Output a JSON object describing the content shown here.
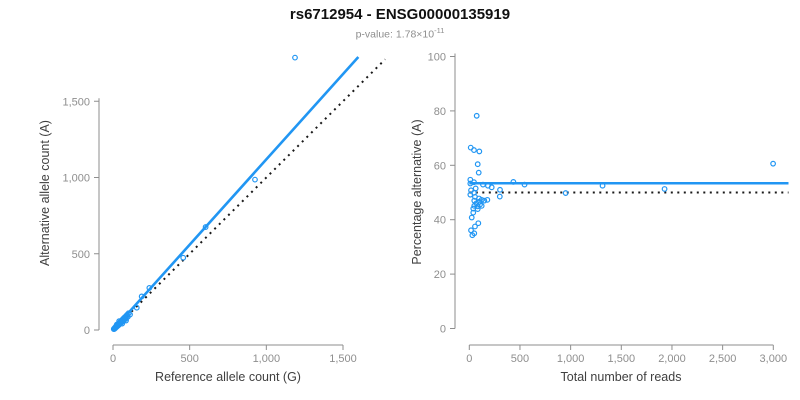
{
  "header": {
    "title": "rs6712954 - ENSG00000135919",
    "p_label": "p-value:",
    "p_mantissa": " 1.78×10",
    "p_exponent": "-11"
  },
  "colors": {
    "accent_blue": "#2196f3",
    "identity_black": "#1a1a1a",
    "axis_gray": "#8e8e8e",
    "tick_label_gray": "#8e8e8e",
    "axis_title_gray": "#404040"
  },
  "chart_data": [
    {
      "type": "scatter",
      "panel": "allele-counts",
      "xlabel": "Reference allele count (G)",
      "ylabel": "Alternative allele count (A)",
      "xlim": [
        0,
        1800
      ],
      "ylim": [
        0,
        1800
      ],
      "xticks": [
        0,
        500,
        1000,
        1500
      ],
      "yticks": [
        0,
        500,
        1000,
        1500
      ],
      "grid": false,
      "legend": "none",
      "lines": [
        {
          "name": "identity-line",
          "style": "dotted",
          "x1": 0,
          "y1": 0,
          "x2": 1775,
          "y2": 1775
        },
        {
          "name": "fit-line",
          "style": "solid",
          "x1": 0,
          "y1": 0,
          "x2": 1600,
          "y2": 1790
        }
      ],
      "points": [
        [
          5,
          6
        ],
        [
          7,
          9
        ],
        [
          9,
          7
        ],
        [
          10,
          12
        ],
        [
          12,
          10
        ],
        [
          13,
          15
        ],
        [
          15,
          13
        ],
        [
          16,
          19
        ],
        [
          18,
          16
        ],
        [
          20,
          22
        ],
        [
          21,
          26
        ],
        [
          23,
          20
        ],
        [
          25,
          28
        ],
        [
          27,
          24
        ],
        [
          29,
          32
        ],
        [
          31,
          28
        ],
        [
          33,
          37
        ],
        [
          35,
          31
        ],
        [
          37,
          41
        ],
        [
          39,
          35
        ],
        [
          41,
          45
        ],
        [
          43,
          39
        ],
        [
          45,
          50
        ],
        [
          47,
          43
        ],
        [
          50,
          55
        ],
        [
          52,
          47
        ],
        [
          54,
          60
        ],
        [
          57,
          52
        ],
        [
          60,
          66
        ],
        [
          62,
          56
        ],
        [
          65,
          72
        ],
        [
          68,
          61
        ],
        [
          70,
          77
        ],
        [
          73,
          66
        ],
        [
          76,
          83
        ],
        [
          80,
          72
        ],
        [
          84,
          91
        ],
        [
          88,
          79
        ],
        [
          92,
          100
        ],
        [
          97,
          87
        ],
        [
          25,
          36
        ],
        [
          40,
          58
        ],
        [
          60,
          42
        ],
        [
          85,
          62
        ],
        [
          102,
          110
        ],
        [
          111,
          101
        ],
        [
          155,
          146
        ],
        [
          187,
          220
        ],
        [
          237,
          276
        ],
        [
          458,
          474
        ],
        [
          604,
          675
        ],
        [
          926,
          986
        ],
        [
          1187,
          1786
        ]
      ]
    },
    {
      "type": "scatter",
      "panel": "percentage-vs-coverage",
      "xlabel": "Total number of reads",
      "ylabel": "Percentage alternative (A)",
      "xlim": [
        0,
        3150
      ],
      "ylim": [
        0,
        100
      ],
      "xticks": [
        0,
        500,
        1000,
        1500,
        2000,
        2500,
        3000
      ],
      "yticks": [
        0,
        20,
        40,
        60,
        80,
        100
      ],
      "grid": false,
      "legend": "none",
      "lines": [
        {
          "name": "null-50pct-line",
          "style": "dotted",
          "x1": 0,
          "y1": 50,
          "x2": 3150,
          "y2": 50
        },
        {
          "name": "fit-line",
          "style": "solid",
          "x1": 0,
          "y1": 53.4,
          "x2": 3150,
          "y2": 53.4
        }
      ],
      "points": [
        [
          14,
          66.5
        ],
        [
          46,
          65.6
        ],
        [
          99,
          65.1
        ],
        [
          73,
          78.2
        ],
        [
          83,
          60.4
        ],
        [
          93,
          57.3
        ],
        [
          10,
          54.7
        ],
        [
          46,
          53.8
        ],
        [
          10,
          53.3
        ],
        [
          135,
          52.9
        ],
        [
          184,
          52.5
        ],
        [
          221,
          51.9
        ],
        [
          303,
          51.0
        ],
        [
          435,
          53.9
        ],
        [
          545,
          52.9
        ],
        [
          63,
          51.5
        ],
        [
          17,
          50.8
        ],
        [
          46,
          49.9
        ],
        [
          10,
          49.2
        ],
        [
          56,
          48.4
        ],
        [
          96,
          47.8
        ],
        [
          49,
          47.0
        ],
        [
          96,
          46.6
        ],
        [
          122,
          47.3
        ],
        [
          148,
          47.0
        ],
        [
          178,
          47.3
        ],
        [
          301,
          48.5
        ],
        [
          69,
          46.0
        ],
        [
          106,
          45.6
        ],
        [
          49,
          45.1
        ],
        [
          83,
          44.9
        ],
        [
          122,
          45.1
        ],
        [
          39,
          44.1
        ],
        [
          83,
          43.9
        ],
        [
          39,
          42.6
        ],
        [
          24,
          40.8
        ],
        [
          89,
          38.7
        ],
        [
          56,
          37.5
        ],
        [
          17,
          36.1
        ],
        [
          49,
          35.0
        ],
        [
          30,
          34.3
        ],
        [
          951,
          49.8
        ],
        [
          1315,
          52.5
        ],
        [
          1927,
          51.3
        ],
        [
          2998,
          60.6
        ]
      ]
    }
  ]
}
